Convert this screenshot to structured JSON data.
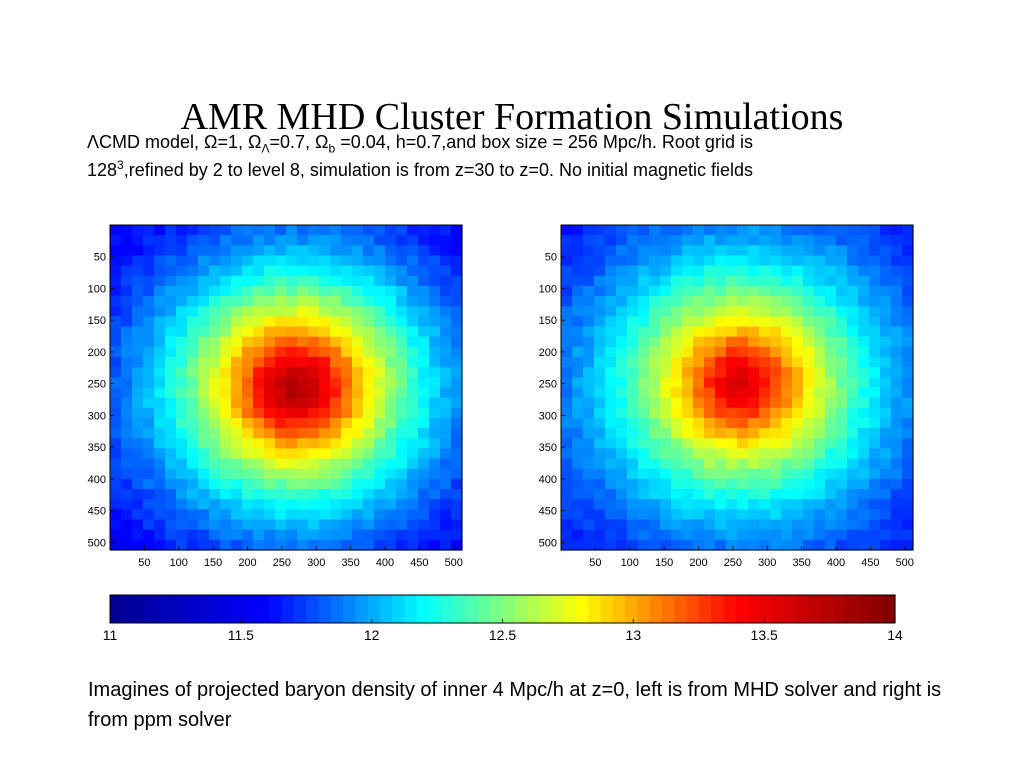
{
  "slide": {
    "title": "AMR MHD Cluster Formation Simulations",
    "params_line1_a": "ΛCMD model, Ω=1, Ω",
    "params_line1_sub1": "Λ",
    "params_line1_b": "=0.7, Ω",
    "params_line1_sub2": "b",
    "params_line1_c": " =0.04, h=0.7,and box size = 256 Mpc/h. Root grid is",
    "params_line2_a": "128",
    "params_line2_sup": "3",
    "params_line2_b": ",refined by 2 to level 8, simulation is from z=30 to z=0. No initial magnetic fields",
    "caption": "Imagines of projected baryon density of inner 4 Mpc/h at z=0, left is from MHD solver and right is from ppm solver"
  },
  "chart_data": [
    {
      "type": "heatmap",
      "name": "MHD solver",
      "xlim": [
        0,
        512
      ],
      "ylim": [
        512,
        0
      ],
      "xticks": [
        50,
        100,
        150,
        200,
        250,
        300,
        350,
        400,
        450,
        500
      ],
      "yticks": [
        50,
        100,
        150,
        200,
        250,
        300,
        350,
        400,
        450,
        500
      ],
      "grid_cells": 32,
      "peak": {
        "x": 270,
        "y": 256,
        "value": 13.8
      },
      "edge_value": 11.4,
      "clim": [
        11,
        14
      ]
    },
    {
      "type": "heatmap",
      "name": "ppm solver",
      "xlim": [
        0,
        512
      ],
      "ylim": [
        512,
        0
      ],
      "xticks": [
        50,
        100,
        150,
        200,
        250,
        300,
        350,
        400,
        450,
        500
      ],
      "yticks": [
        50,
        100,
        150,
        200,
        250,
        300,
        350,
        400,
        450,
        500
      ],
      "grid_cells": 32,
      "peak": {
        "x": 262,
        "y": 250,
        "value": 13.6
      },
      "edge_value": 11.5,
      "clim": [
        11,
        14
      ]
    }
  ],
  "colorbar": {
    "min": 11,
    "max": 14,
    "ticks": [
      "11",
      "11.5",
      "12",
      "12.5",
      "13",
      "13.5",
      "14"
    ],
    "colormap": [
      "#00008f",
      "#0000ff",
      "#00ffff",
      "#ffff00",
      "#ff0000",
      "#800000"
    ]
  }
}
